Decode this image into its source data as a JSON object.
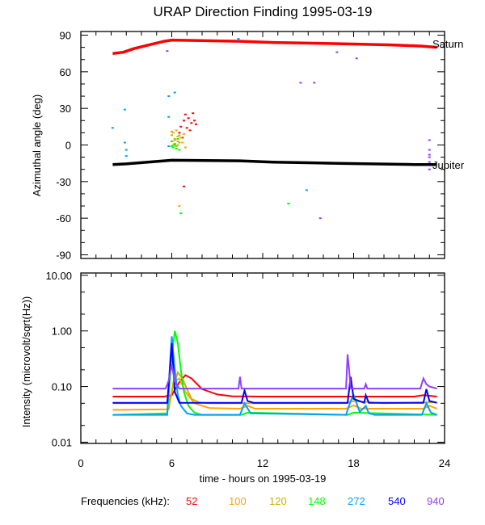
{
  "chart_data": [
    {
      "type": "scatter",
      "title": "URAP Direction Finding  1995-03-19",
      "ylabel": "Azimuthal angle (deg)",
      "xlabel": "",
      "xlim": [
        0,
        24
      ],
      "ylim": [
        -93,
        93
      ],
      "yticks": [
        90,
        60,
        30,
        0,
        -30,
        -60,
        -90
      ],
      "ytick_labels": [
        "90",
        "60",
        "30",
        "0",
        "-30",
        "-60",
        "-90"
      ],
      "grid": false,
      "reference_lines": [
        {
          "name": "Saturn",
          "color": "#ff0000",
          "x": [
            2.1,
            2.8,
            3.5,
            4.5,
            5.5,
            6.0,
            10.5,
            12.7,
            17.0,
            20.5,
            22.5,
            23.5
          ],
          "y": [
            75,
            76,
            79,
            82,
            85,
            86,
            85,
            84,
            83,
            82,
            81,
            80
          ]
        },
        {
          "name": "Jupiter",
          "color": "#000000",
          "x": [
            2.1,
            3.0,
            4.0,
            5.0,
            6.0,
            10.5,
            12.7,
            17.0,
            22.0,
            23.5
          ],
          "y": [
            -16,
            -15.5,
            -14.5,
            -13.5,
            -12.5,
            -13,
            -14,
            -15,
            -16,
            -16
          ]
        }
      ],
      "series": [
        {
          "name": "52",
          "color": "#ff0000",
          "points": [
            [
              6.8,
              20
            ],
            [
              7.1,
              22
            ],
            [
              7.3,
              18
            ],
            [
              6.6,
              15
            ],
            [
              6.9,
              25
            ],
            [
              7.4,
              26
            ],
            [
              7.0,
              14
            ],
            [
              6.5,
              10
            ],
            [
              7.5,
              20
            ],
            [
              7.2,
              12
            ],
            [
              6.7,
              6
            ],
            [
              7.6,
              17
            ],
            [
              6.8,
              -34
            ]
          ]
        },
        {
          "name": "100",
          "color": "#ffa500",
          "points": [
            [
              6.3,
              12
            ],
            [
              6.5,
              8
            ],
            [
              6.2,
              4
            ],
            [
              6.7,
              2
            ],
            [
              6.4,
              0
            ],
            [
              6.9,
              -2
            ],
            [
              6.1,
              10
            ],
            [
              6.6,
              6
            ],
            [
              6.8,
              9
            ],
            [
              6.5,
              -50
            ]
          ]
        },
        {
          "name": "120",
          "color": "#d0b000",
          "points": [
            [
              6.0,
              8
            ],
            [
              6.2,
              5
            ],
            [
              6.4,
              3
            ],
            [
              6.1,
              0
            ],
            [
              6.3,
              -1
            ],
            [
              6.5,
              2
            ],
            [
              6.0,
              11
            ],
            [
              6.4,
              7
            ]
          ]
        },
        {
          "name": "148",
          "color": "#00ff00",
          "points": [
            [
              6.0,
              3
            ],
            [
              6.2,
              0
            ],
            [
              6.1,
              -2
            ],
            [
              6.3,
              -3
            ],
            [
              6.4,
              5
            ],
            [
              6.0,
              -1
            ],
            [
              6.2,
              1
            ],
            [
              6.5,
              -4
            ],
            [
              6.6,
              -56
            ],
            [
              13.7,
              -48
            ]
          ]
        },
        {
          "name": "272",
          "color": "#00a0ff",
          "points": [
            [
              2.1,
              14
            ],
            [
              2.9,
              29
            ],
            [
              2.9,
              2
            ],
            [
              3.0,
              -4
            ],
            [
              3.0,
              -9
            ],
            [
              5.8,
              40
            ],
            [
              6.2,
              43
            ],
            [
              5.8,
              23
            ],
            [
              5.8,
              -1
            ],
            [
              10.4,
              87
            ],
            [
              14.9,
              -37
            ]
          ]
        },
        {
          "name": "540",
          "color": "#0000ff",
          "points": []
        },
        {
          "name": "940",
          "color": "#9040ff",
          "points": [
            [
              5.7,
              77
            ],
            [
              10.4,
              86
            ],
            [
              14.5,
              51
            ],
            [
              15.4,
              51
            ],
            [
              16.9,
              76
            ],
            [
              18.2,
              71
            ],
            [
              15.8,
              -60
            ],
            [
              23.0,
              4
            ],
            [
              23.0,
              -4
            ],
            [
              23.0,
              -8
            ],
            [
              23.0,
              -10
            ],
            [
              23.0,
              -14
            ],
            [
              23.0,
              -20
            ]
          ]
        }
      ]
    },
    {
      "type": "line",
      "ylabel": "Intensity (microvolt/sqrt(Hz))",
      "xlabel": "time - hours on 1995-03-19",
      "xlim": [
        0,
        24
      ],
      "xticks": [
        0,
        6,
        12,
        18,
        24
      ],
      "xtick_labels": [
        "0",
        "6",
        "12",
        "18",
        "24"
      ],
      "yscale": "log",
      "ylim": [
        0.0095,
        11
      ],
      "yticks": [
        10,
        1,
        0.1,
        0.01
      ],
      "ytick_labels": [
        "10.00",
        "1.00",
        "0.10",
        "0.01"
      ],
      "grid": false,
      "legend": {
        "title": "Frequencies (kHz):",
        "placement": "bottom"
      },
      "series": [
        {
          "name": "52",
          "color": "#ff0000",
          "baseline": 0.066,
          "x": [
            2.1,
            5.5,
            6.0,
            6.5,
            6.9,
            7.3,
            8.0,
            9.0,
            10.0,
            12.0,
            18.0,
            22.0,
            22.6,
            23.5
          ],
          "y": [
            0.066,
            0.066,
            0.07,
            0.12,
            0.16,
            0.14,
            0.09,
            0.072,
            0.067,
            0.066,
            0.066,
            0.066,
            0.07,
            0.066
          ]
        },
        {
          "name": "100",
          "color": "#ffa500",
          "baseline": 0.04,
          "x": [
            2.1,
            5.8,
            6.1,
            6.5,
            6.9,
            7.5,
            8.5,
            10.5,
            11.0,
            11.5,
            17.5,
            18.0,
            18.5,
            22.6,
            23.0,
            23.5
          ],
          "y": [
            0.038,
            0.039,
            0.12,
            0.14,
            0.08,
            0.05,
            0.041,
            0.04,
            0.045,
            0.04,
            0.04,
            0.046,
            0.04,
            0.04,
            0.045,
            0.04
          ]
        },
        {
          "name": "120",
          "color": "#d0b000",
          "baseline": 0.05,
          "x": [
            2.1,
            5.8,
            6.1,
            6.4,
            6.7,
            7.0,
            7.3,
            7.8,
            8.5,
            17.5,
            18.0,
            20.0,
            22.5,
            23.5
          ],
          "y": [
            0.05,
            0.05,
            0.1,
            0.18,
            0.14,
            0.09,
            0.06,
            0.052,
            0.05,
            0.05,
            0.055,
            0.05,
            0.052,
            0.052
          ]
        },
        {
          "name": "148",
          "color": "#00ff00",
          "baseline": 0.033,
          "x": [
            2.1,
            5.7,
            6.0,
            6.2,
            6.4,
            6.6,
            6.8,
            7.1,
            7.5,
            8.0,
            10.6,
            11.0,
            17.6,
            18.0,
            23.5
          ],
          "y": [
            0.031,
            0.033,
            0.35,
            1.0,
            0.6,
            0.2,
            0.08,
            0.045,
            0.034,
            0.031,
            0.031,
            0.034,
            0.031,
            0.034,
            0.031
          ]
        },
        {
          "name": "272",
          "color": "#00a0ff",
          "baseline": 0.031,
          "x": [
            2.1,
            5.7,
            5.9,
            6.0,
            6.2,
            6.4,
            6.6,
            7.0,
            7.5,
            10.5,
            10.8,
            11.2,
            17.5,
            17.8,
            18.0,
            18.4,
            18.8,
            19.0,
            19.4,
            22.5,
            22.8,
            23.1,
            23.5
          ],
          "y": [
            0.031,
            0.031,
            0.3,
            0.8,
            0.2,
            0.07,
            0.045,
            0.033,
            0.031,
            0.031,
            0.05,
            0.033,
            0.031,
            0.055,
            0.07,
            0.035,
            0.045,
            0.033,
            0.031,
            0.031,
            0.05,
            0.034,
            0.031
          ]
        },
        {
          "name": "540",
          "color": "#0000ff",
          "baseline": 0.051,
          "x": [
            2.1,
            5.7,
            5.9,
            6.0,
            6.2,
            6.5,
            10.6,
            10.8,
            11.0,
            11.4,
            17.6,
            17.8,
            18.0,
            18.7,
            18.8,
            19.0,
            22.6,
            22.8,
            23.0,
            23.5
          ],
          "y": [
            0.051,
            0.051,
            0.25,
            0.6,
            0.08,
            0.051,
            0.051,
            0.085,
            0.055,
            0.051,
            0.051,
            0.15,
            0.06,
            0.051,
            0.07,
            0.051,
            0.051,
            0.09,
            0.055,
            0.051
          ]
        },
        {
          "name": "940",
          "color": "#9040ff",
          "baseline": 0.092,
          "x": [
            2.1,
            5.6,
            5.8,
            6.0,
            6.2,
            6.5,
            10.4,
            10.5,
            10.6,
            17.5,
            17.6,
            17.7,
            17.8,
            18.7,
            18.8,
            18.9,
            22.4,
            22.6,
            22.8,
            23.0,
            23.5
          ],
          "y": [
            0.092,
            0.092,
            0.13,
            0.25,
            0.12,
            0.092,
            0.092,
            0.15,
            0.092,
            0.092,
            0.38,
            0.2,
            0.092,
            0.092,
            0.11,
            0.092,
            0.092,
            0.14,
            0.11,
            0.1,
            0.092
          ]
        }
      ]
    }
  ],
  "labels": {
    "title": "URAP Direction Finding  1995-03-19",
    "saturn": "Saturn",
    "jupiter": "Jupiter",
    "legend_title": "Frequencies (kHz):",
    "legend_items": [
      {
        "label": "52",
        "color": "#ff0000"
      },
      {
        "label": "100",
        "color": "#ffa500"
      },
      {
        "label": "120",
        "color": "#d0b000"
      },
      {
        "label": "148",
        "color": "#00ff00"
      },
      {
        "label": "272",
        "color": "#00a0ff"
      },
      {
        "label": "540",
        "color": "#0000ff"
      },
      {
        "label": "940",
        "color": "#9040ff"
      }
    ]
  }
}
